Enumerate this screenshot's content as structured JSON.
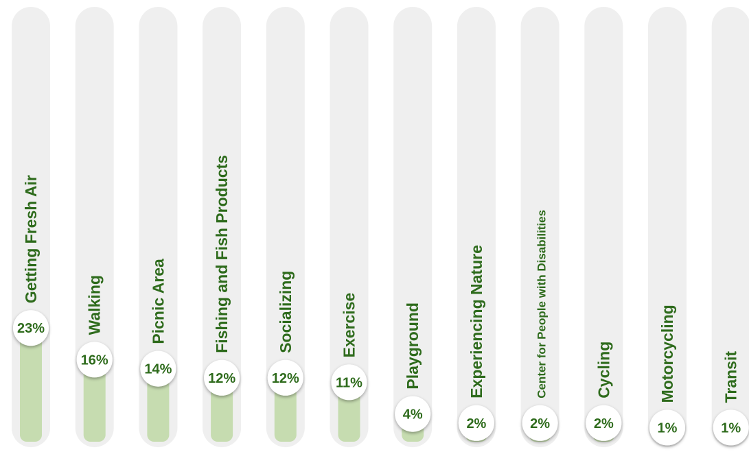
{
  "chart_data": {
    "type": "bar",
    "categories": [
      "Getting Fresh Air",
      "Walking",
      "Picnic Area",
      "Fishing and Fish Products",
      "Socializing",
      "Exercise",
      "Playground",
      "Experiencing Nature",
      "Center for People with Disabilities",
      "Cycling",
      "Motorcycling",
      "Transit"
    ],
    "values": [
      23,
      16,
      14,
      12,
      12,
      11,
      4,
      2,
      2,
      2,
      1,
      1
    ],
    "value_labels": [
      "23%",
      "16%",
      "14%",
      "12%",
      "12%",
      "11%",
      "4%",
      "2%",
      "2%",
      "2%",
      "1%",
      "1%"
    ],
    "color": "#c6dcb0"
  }
}
